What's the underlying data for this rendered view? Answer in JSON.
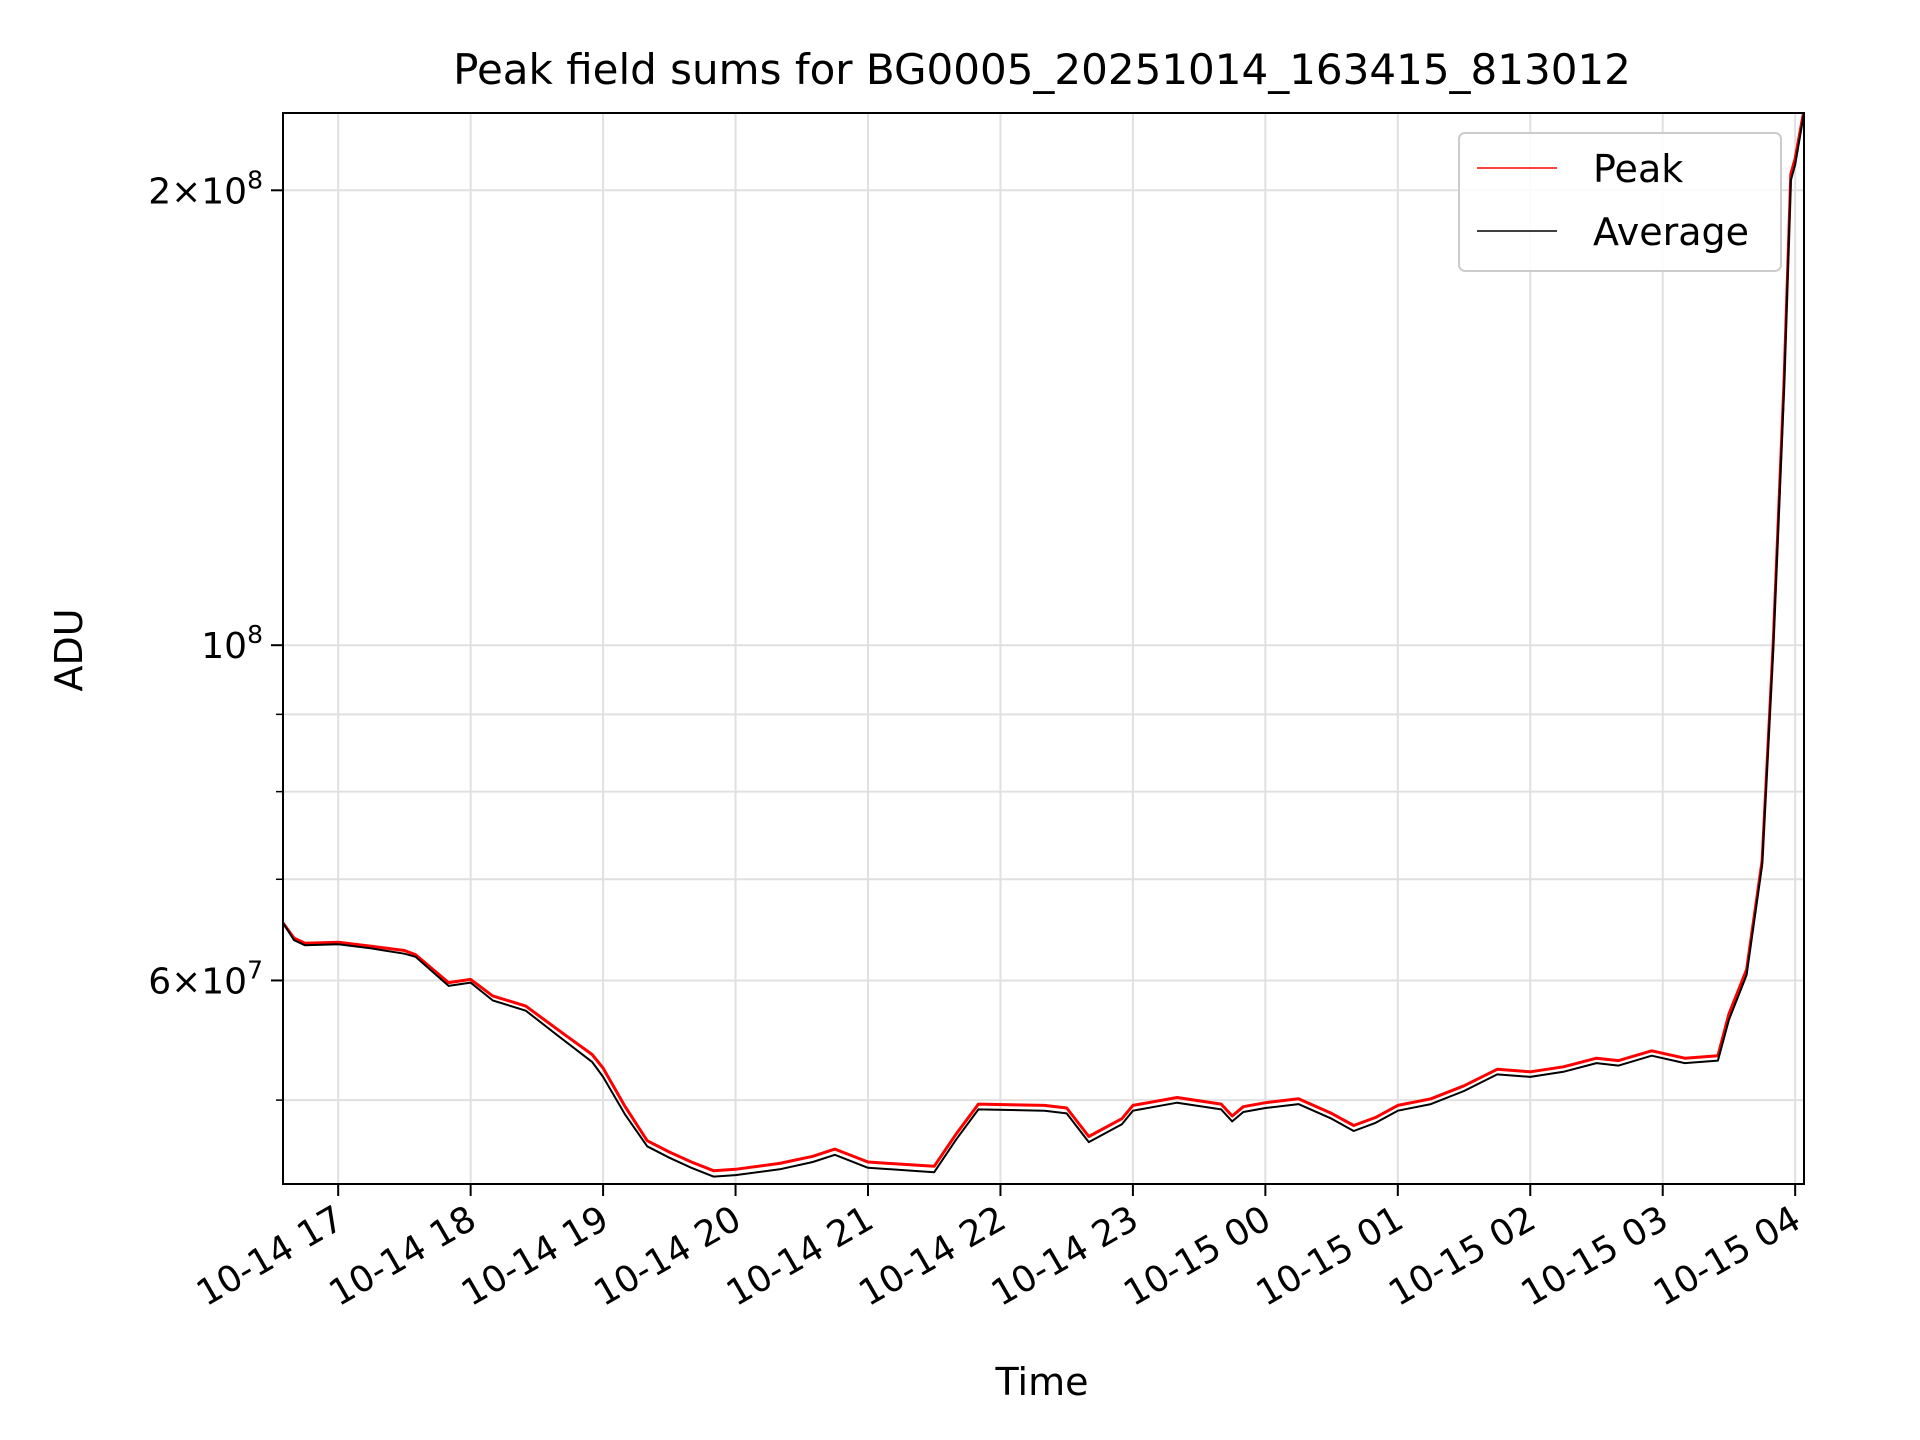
{
  "chart_data": {
    "type": "line",
    "title": "Peak field sums for BG0005_20251014_163415_813012",
    "xlabel": "Time",
    "ylabel": "ADU",
    "yscale": "log",
    "ylim": [
      44000000,
      225000000
    ],
    "xlim": [
      "2025-10-14T16:35",
      "2025-10-15T04:04"
    ],
    "x_ticks": [
      "10-14 17",
      "10-14 18",
      "10-14 19",
      "10-14 20",
      "10-14 21",
      "10-14 22",
      "10-14 23",
      "10-15 00",
      "10-15 01",
      "10-15 02",
      "10-15 03",
      "10-15 04"
    ],
    "y_major_ticks": [
      {
        "value": 200000000,
        "mantissa": "2",
        "exp": "8"
      },
      {
        "value": 100000000,
        "mantissa": "",
        "exp": "8"
      },
      {
        "value": 60000000,
        "mantissa": "6",
        "exp": "7"
      }
    ],
    "y_minor_ticks": [
      50000000,
      70000000,
      80000000,
      90000000
    ],
    "grid": true,
    "legend_position": "top-right",
    "series": [
      {
        "name": "Peak",
        "color": "#ff0000",
        "points": [
          [
            "2025-10-14T16:35",
            65500000
          ],
          [
            "2025-10-14T16:40",
            64000000
          ],
          [
            "2025-10-14T16:45",
            63500000
          ],
          [
            "2025-10-14T17:00",
            63600000
          ],
          [
            "2025-10-14T17:15",
            63200000
          ],
          [
            "2025-10-14T17:30",
            62800000
          ],
          [
            "2025-10-14T17:35",
            62400000
          ],
          [
            "2025-10-14T17:50",
            59800000
          ],
          [
            "2025-10-14T18:00",
            60100000
          ],
          [
            "2025-10-14T18:10",
            58600000
          ],
          [
            "2025-10-14T18:25",
            57700000
          ],
          [
            "2025-10-14T18:40",
            55600000
          ],
          [
            "2025-10-14T18:55",
            53600000
          ],
          [
            "2025-10-14T19:00",
            52500000
          ],
          [
            "2025-10-14T19:10",
            49500000
          ],
          [
            "2025-10-14T19:20",
            47000000
          ],
          [
            "2025-10-14T19:30",
            46200000
          ],
          [
            "2025-10-14T19:40",
            45500000
          ],
          [
            "2025-10-14T19:50",
            44900000
          ],
          [
            "2025-10-14T20:00",
            45000000
          ],
          [
            "2025-10-14T20:20",
            45400000
          ],
          [
            "2025-10-14T20:35",
            45900000
          ],
          [
            "2025-10-14T20:45",
            46400000
          ],
          [
            "2025-10-14T21:00",
            45500000
          ],
          [
            "2025-10-14T21:20",
            45300000
          ],
          [
            "2025-10-14T21:30",
            45200000
          ],
          [
            "2025-10-14T21:40",
            47500000
          ],
          [
            "2025-10-14T21:50",
            49700000
          ],
          [
            "2025-10-14T22:20",
            49600000
          ],
          [
            "2025-10-14T22:30",
            49400000
          ],
          [
            "2025-10-14T22:40",
            47300000
          ],
          [
            "2025-10-14T22:55",
            48600000
          ],
          [
            "2025-10-14T23:00",
            49600000
          ],
          [
            "2025-10-14T23:20",
            50200000
          ],
          [
            "2025-10-14T23:40",
            49700000
          ],
          [
            "2025-10-14T23:45",
            48800000
          ],
          [
            "2025-10-14T23:50",
            49500000
          ],
          [
            "2025-10-15T00:00",
            49800000
          ],
          [
            "2025-10-15T00:15",
            50100000
          ],
          [
            "2025-10-15T00:30",
            49000000
          ],
          [
            "2025-10-15T00:40",
            48100000
          ],
          [
            "2025-10-15T00:50",
            48700000
          ],
          [
            "2025-10-15T01:00",
            49600000
          ],
          [
            "2025-10-15T01:15",
            50100000
          ],
          [
            "2025-10-15T01:30",
            51100000
          ],
          [
            "2025-10-15T01:45",
            52400000
          ],
          [
            "2025-10-15T02:00",
            52200000
          ],
          [
            "2025-10-15T02:15",
            52600000
          ],
          [
            "2025-10-15T02:30",
            53300000
          ],
          [
            "2025-10-15T02:40",
            53100000
          ],
          [
            "2025-10-15T02:55",
            53900000
          ],
          [
            "2025-10-15T03:10",
            53300000
          ],
          [
            "2025-10-15T03:25",
            53500000
          ],
          [
            "2025-10-15T03:30",
            57000000
          ],
          [
            "2025-10-15T03:38",
            61000000
          ],
          [
            "2025-10-15T03:45",
            72000000
          ],
          [
            "2025-10-15T03:50",
            100000000
          ],
          [
            "2025-10-15T03:55",
            150000000
          ],
          [
            "2025-10-15T03:58",
            205000000
          ],
          [
            "2025-10-15T04:00",
            210000000
          ],
          [
            "2025-10-15T04:04",
            226000000
          ]
        ]
      },
      {
        "name": "Average",
        "color": "#000000",
        "points": [
          [
            "2025-10-14T16:35",
            65500000
          ],
          [
            "2025-10-14T16:40",
            63800000
          ],
          [
            "2025-10-14T16:45",
            63300000
          ],
          [
            "2025-10-14T17:00",
            63400000
          ],
          [
            "2025-10-14T17:15",
            63000000
          ],
          [
            "2025-10-14T17:30",
            62500000
          ],
          [
            "2025-10-14T17:35",
            62200000
          ],
          [
            "2025-10-14T17:50",
            59500000
          ],
          [
            "2025-10-14T18:00",
            59800000
          ],
          [
            "2025-10-14T18:10",
            58200000
          ],
          [
            "2025-10-14T18:25",
            57300000
          ],
          [
            "2025-10-14T18:40",
            55100000
          ],
          [
            "2025-10-14T18:55",
            53000000
          ],
          [
            "2025-10-14T19:00",
            51800000
          ],
          [
            "2025-10-14T19:10",
            48900000
          ],
          [
            "2025-10-14T19:20",
            46600000
          ],
          [
            "2025-10-14T19:30",
            45800000
          ],
          [
            "2025-10-14T19:40",
            45100000
          ],
          [
            "2025-10-14T19:50",
            44500000
          ],
          [
            "2025-10-14T20:00",
            44600000
          ],
          [
            "2025-10-14T20:20",
            45000000
          ],
          [
            "2025-10-14T20:35",
            45500000
          ],
          [
            "2025-10-14T20:45",
            46000000
          ],
          [
            "2025-10-14T21:00",
            45100000
          ],
          [
            "2025-10-14T21:20",
            44900000
          ],
          [
            "2025-10-14T21:30",
            44800000
          ],
          [
            "2025-10-14T21:40",
            47100000
          ],
          [
            "2025-10-14T21:50",
            49300000
          ],
          [
            "2025-10-14T22:20",
            49200000
          ],
          [
            "2025-10-14T22:30",
            49000000
          ],
          [
            "2025-10-14T22:40",
            46900000
          ],
          [
            "2025-10-14T22:55",
            48200000
          ],
          [
            "2025-10-14T23:00",
            49200000
          ],
          [
            "2025-10-14T23:20",
            49800000
          ],
          [
            "2025-10-14T23:40",
            49300000
          ],
          [
            "2025-10-14T23:45",
            48400000
          ],
          [
            "2025-10-14T23:50",
            49100000
          ],
          [
            "2025-10-15T00:00",
            49400000
          ],
          [
            "2025-10-15T00:15",
            49700000
          ],
          [
            "2025-10-15T00:30",
            48600000
          ],
          [
            "2025-10-15T00:40",
            47700000
          ],
          [
            "2025-10-15T00:50",
            48300000
          ],
          [
            "2025-10-15T01:00",
            49200000
          ],
          [
            "2025-10-15T01:15",
            49700000
          ],
          [
            "2025-10-15T01:30",
            50700000
          ],
          [
            "2025-10-15T01:45",
            52000000
          ],
          [
            "2025-10-15T02:00",
            51800000
          ],
          [
            "2025-10-15T02:15",
            52200000
          ],
          [
            "2025-10-15T02:30",
            52900000
          ],
          [
            "2025-10-15T02:40",
            52700000
          ],
          [
            "2025-10-15T02:55",
            53500000
          ],
          [
            "2025-10-15T03:10",
            52900000
          ],
          [
            "2025-10-15T03:25",
            53100000
          ],
          [
            "2025-10-15T03:30",
            56500000
          ],
          [
            "2025-10-15T03:38",
            60500000
          ],
          [
            "2025-10-15T03:45",
            71500000
          ],
          [
            "2025-10-15T03:50",
            99000000
          ],
          [
            "2025-10-15T03:55",
            148000000
          ],
          [
            "2025-10-15T03:58",
            203000000
          ],
          [
            "2025-10-15T04:00",
            208000000
          ],
          [
            "2025-10-15T04:04",
            225000000
          ]
        ]
      }
    ]
  }
}
